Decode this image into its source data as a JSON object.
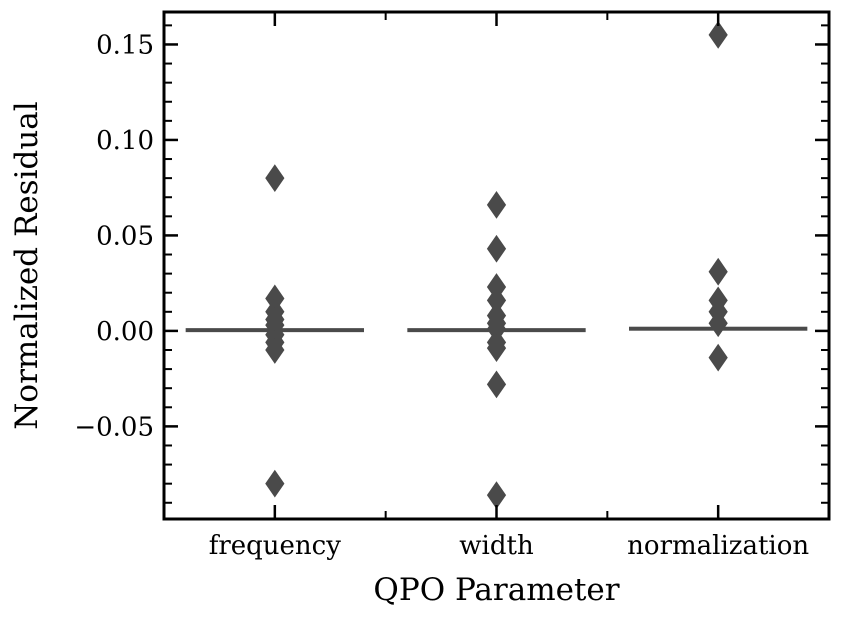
{
  "chart_data": {
    "type": "box",
    "title": "",
    "xlabel": "QPO Parameter",
    "ylabel": "Normalized Residual",
    "categories": [
      "frequency",
      "width",
      "normalization"
    ],
    "ylim": [
      -0.0985,
      0.167
    ],
    "yticks": [
      -0.05,
      0.0,
      0.05,
      0.1,
      0.15
    ],
    "ytick_labels": [
      "−0.05",
      "0.00",
      "0.05",
      "0.10",
      "0.15"
    ],
    "ytick_minor_step": 0.01,
    "box_color": "#4a4a4a",
    "grid": false,
    "boxes": [
      {
        "category": "frequency",
        "median": 0.0004,
        "q1": 0.0002,
        "q3": 0.0006,
        "outliers": [
          0.08,
          0.017,
          0.01,
          0.006,
          0.003,
          -0.002,
          -0.006,
          -0.01,
          -0.08
        ]
      },
      {
        "category": "width",
        "median": 0.0004,
        "q1": 0.0002,
        "q3": 0.0006,
        "outliers": [
          0.066,
          0.043,
          0.023,
          0.016,
          0.008,
          0.004,
          0.001,
          -0.006,
          -0.009,
          -0.028,
          -0.086
        ]
      },
      {
        "category": "normalization",
        "median": 0.0011,
        "q1": 0.0006,
        "q3": 0.0017,
        "outliers": [
          0.155,
          0.031,
          0.016,
          0.01,
          0.004,
          -0.014
        ]
      }
    ]
  }
}
